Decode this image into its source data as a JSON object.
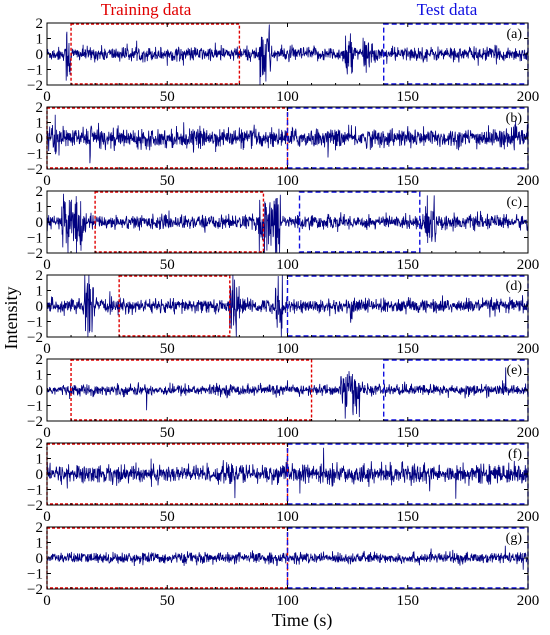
{
  "header": {
    "training_label": "Training data",
    "test_label": "Test data"
  },
  "colors": {
    "signal": "#000080",
    "training": "#e00000",
    "test": "#1010e0",
    "axis": "#000000"
  },
  "chart_data": {
    "type": "line",
    "xlabel": "Time (s)",
    "ylabel": "Intensity",
    "xlim": [
      0,
      200
    ],
    "ylim": [
      -2,
      2
    ],
    "xticks": [
      0,
      50,
      100,
      150,
      200
    ],
    "yticks": [
      2,
      1,
      0,
      -1,
      -2
    ],
    "panels": [
      {
        "label": "(a)",
        "training_window": [
          10,
          80
        ],
        "test_window": [
          140,
          200
        ],
        "baseline_amplitude": 0.45,
        "bursts": [
          [
            8,
            10,
            2.0
          ],
          [
            88,
            93,
            2.0
          ],
          [
            124,
            127,
            2.0
          ],
          [
            131,
            134,
            1.3
          ]
        ]
      },
      {
        "label": "(b)",
        "training_window": [
          0,
          100
        ],
        "test_window": [
          100,
          200
        ],
        "baseline_amplitude": 0.6,
        "bursts": [
          [
            2,
            4,
            1.2
          ],
          [
            17,
            19,
            1.5
          ]
        ]
      },
      {
        "label": "(c)",
        "training_window": [
          20,
          90
        ],
        "test_window": [
          105,
          155
        ],
        "baseline_amplitude": 0.45,
        "bursts": [
          [
            6,
            15,
            2.0
          ],
          [
            88,
            97,
            2.0
          ],
          [
            157,
            162,
            1.8
          ]
        ]
      },
      {
        "label": "(d)",
        "training_window": [
          30,
          76
        ],
        "test_window": [
          100,
          200
        ],
        "baseline_amplitude": 0.45,
        "bursts": [
          [
            15,
            20,
            2.0
          ],
          [
            76,
            80,
            2.0
          ],
          [
            95,
            98,
            2.0
          ],
          [
            126,
            129,
            1.0
          ]
        ]
      },
      {
        "label": "(e)",
        "training_window": [
          10,
          110
        ],
        "test_window": [
          140,
          200
        ],
        "baseline_amplitude": 0.35,
        "bursts": [
          [
            122,
            130,
            1.6
          ]
        ]
      },
      {
        "label": "(f)",
        "training_window": [
          0,
          100
        ],
        "test_window": [
          100,
          200
        ],
        "baseline_amplitude": 0.6,
        "bursts": [
          [
            156,
            157,
            1.8
          ]
        ]
      },
      {
        "label": "(g)",
        "training_window": [
          0,
          100
        ],
        "test_window": [
          100,
          200
        ],
        "baseline_amplitude": 0.35,
        "bursts": []
      }
    ]
  }
}
